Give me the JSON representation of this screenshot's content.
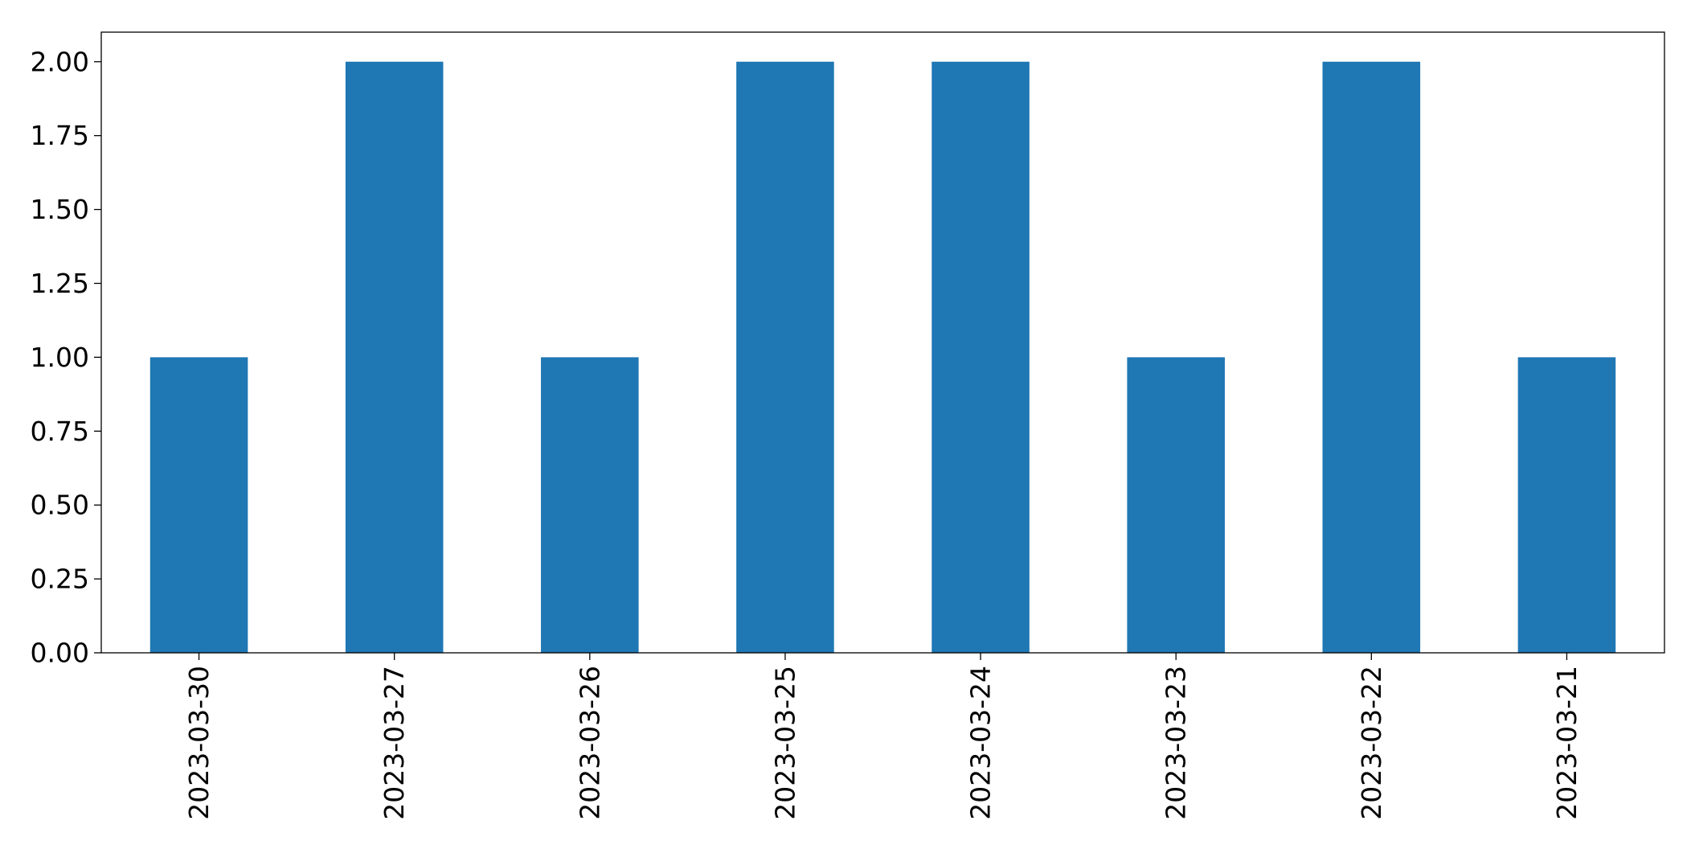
{
  "chart_data": {
    "type": "bar",
    "title": "",
    "xlabel": "",
    "ylabel": "",
    "categories": [
      "2023-03-30",
      "2023-03-27",
      "2023-03-26",
      "2023-03-25",
      "2023-03-24",
      "2023-03-23",
      "2023-03-22",
      "2023-03-21"
    ],
    "values": [
      1,
      2,
      1,
      2,
      2,
      1,
      2,
      1
    ],
    "ylim": [
      0,
      2.1
    ],
    "yticks": [
      "0.00",
      "0.25",
      "0.50",
      "0.75",
      "1.00",
      "1.25",
      "1.50",
      "1.75",
      "2.00"
    ],
    "grid": false,
    "legend": "none",
    "bar_color": "#1f77b4",
    "tick_label_rotation": "vertical"
  }
}
